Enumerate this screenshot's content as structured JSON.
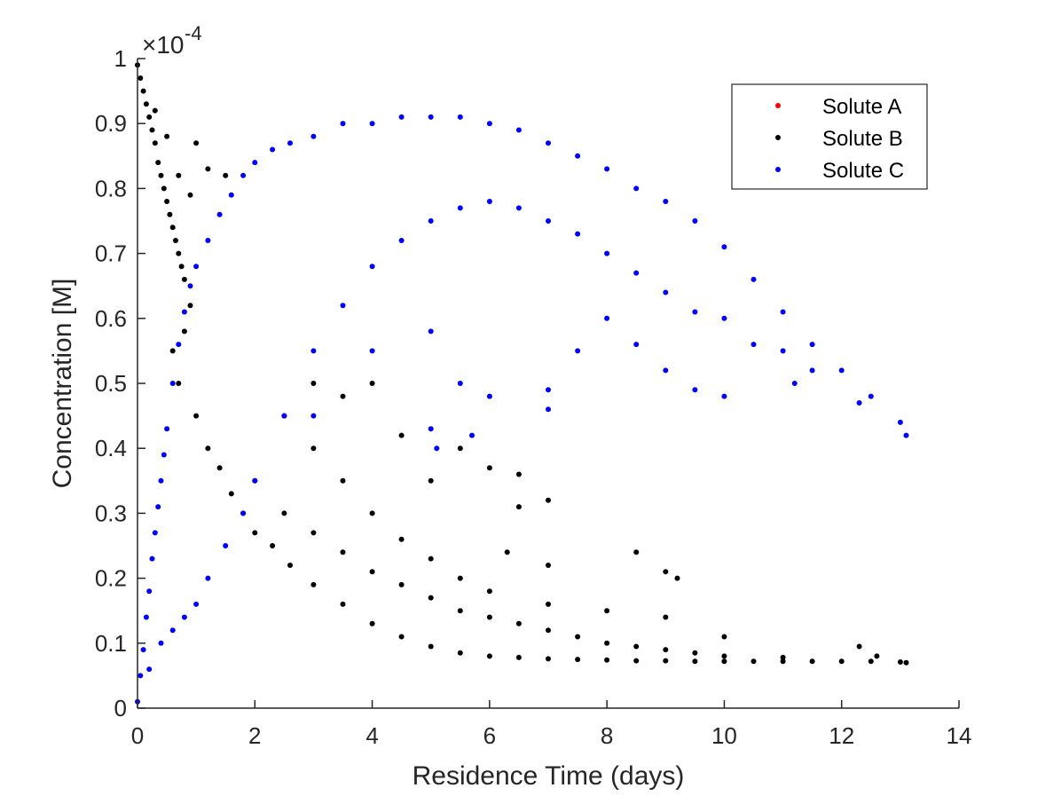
{
  "chart_data": {
    "type": "scatter",
    "xlabel": "Residence Time (days)",
    "ylabel": "Concentration [M]",
    "xlim": [
      0,
      14
    ],
    "ylim": [
      0,
      0.0001
    ],
    "x_ticks": [
      "0",
      "2",
      "4",
      "6",
      "8",
      "10",
      "12",
      "14"
    ],
    "y_ticks": [
      "0",
      "0.1",
      "0.2",
      "0.3",
      "0.4",
      "0.5",
      "0.6",
      "0.7",
      "0.8",
      "0.9",
      "1"
    ],
    "y_exponent": {
      "base": "×10",
      "power": "-4"
    },
    "grid": false,
    "legend_position": "top-right",
    "series": [
      {
        "name": "Solute A",
        "color": "#ff0000",
        "points": []
      },
      {
        "name": "Solute B",
        "color": "#000000",
        "points": [
          [
            0.0,
            9.9e-05
          ],
          [
            0.05,
            9.7e-05
          ],
          [
            0.1,
            9.5e-05
          ],
          [
            0.15,
            9.3e-05
          ],
          [
            0.2,
            9.1e-05
          ],
          [
            0.25,
            8.9e-05
          ],
          [
            0.3,
            8.7e-05
          ],
          [
            0.35,
            8.4e-05
          ],
          [
            0.4,
            8.2e-05
          ],
          [
            0.45,
            8e-05
          ],
          [
            0.5,
            7.8e-05
          ],
          [
            0.55,
            7.6e-05
          ],
          [
            0.6,
            7.4e-05
          ],
          [
            0.65,
            7.2e-05
          ],
          [
            0.7,
            7e-05
          ],
          [
            0.75,
            6.8e-05
          ],
          [
            0.8,
            6.6e-05
          ],
          [
            0.9,
            6.2e-05
          ],
          [
            0.3,
            9.2e-05
          ],
          [
            0.5,
            8.8e-05
          ],
          [
            0.7,
            8.2e-05
          ],
          [
            0.9,
            7.9e-05
          ],
          [
            1.0,
            8.7e-05
          ],
          [
            1.2,
            8.3e-05
          ],
          [
            1.5,
            8.2e-05
          ],
          [
            0.6,
            5.5e-05
          ],
          [
            0.7,
            5e-05
          ],
          [
            0.8,
            5.8e-05
          ],
          [
            1.0,
            4.5e-05
          ],
          [
            1.2,
            4e-05
          ],
          [
            1.4,
            3.7e-05
          ],
          [
            1.6,
            3.3e-05
          ],
          [
            1.8,
            3e-05
          ],
          [
            2.0,
            2.7e-05
          ],
          [
            2.3,
            2.5e-05
          ],
          [
            2.6,
            2.2e-05
          ],
          [
            3.0,
            1.9e-05
          ],
          [
            3.5,
            1.6e-05
          ],
          [
            4.0,
            1.3e-05
          ],
          [
            4.5,
            1.1e-05
          ],
          [
            5.0,
            9.5e-06
          ],
          [
            5.5,
            8.5e-06
          ],
          [
            6.0,
            8e-06
          ],
          [
            6.5,
            7.8e-06
          ],
          [
            7.0,
            7.6e-06
          ],
          [
            7.5,
            7.5e-06
          ],
          [
            8.0,
            7.4e-06
          ],
          [
            8.5,
            7.3e-06
          ],
          [
            9.0,
            7.3e-06
          ],
          [
            9.5,
            7.2e-06
          ],
          [
            10.0,
            7.2e-06
          ],
          [
            10.5,
            7.2e-06
          ],
          [
            11.0,
            7.2e-06
          ],
          [
            11.5,
            7.2e-06
          ],
          [
            12.0,
            7.2e-06
          ],
          [
            12.5,
            7.2e-06
          ],
          [
            13.0,
            7.1e-06
          ],
          [
            2.0,
            3.5e-05
          ],
          [
            2.5,
            3e-05
          ],
          [
            3.0,
            2.7e-05
          ],
          [
            3.5,
            2.4e-05
          ],
          [
            4.0,
            2.1e-05
          ],
          [
            4.5,
            1.9e-05
          ],
          [
            5.0,
            1.7e-05
          ],
          [
            5.5,
            1.5e-05
          ],
          [
            6.0,
            1.4e-05
          ],
          [
            6.5,
            1.3e-05
          ],
          [
            7.0,
            1.2e-05
          ],
          [
            7.5,
            1.1e-05
          ],
          [
            8.0,
            1e-05
          ],
          [
            8.5,
            9.5e-06
          ],
          [
            9.0,
            9e-06
          ],
          [
            9.5,
            8.5e-06
          ],
          [
            10.0,
            8e-06
          ],
          [
            11.0,
            7.8e-06
          ],
          [
            2.5,
            4.5e-05
          ],
          [
            3.0,
            4e-05
          ],
          [
            3.5,
            3.5e-05
          ],
          [
            4.0,
            3e-05
          ],
          [
            4.5,
            2.6e-05
          ],
          [
            5.0,
            2.3e-05
          ],
          [
            5.5,
            2e-05
          ],
          [
            6.0,
            1.8e-05
          ],
          [
            7.0,
            1.6e-05
          ],
          [
            8.0,
            1.5e-05
          ],
          [
            9.0,
            1.4e-05
          ],
          [
            10.0,
            1.1e-05
          ],
          [
            3.0,
            5e-05
          ],
          [
            3.5,
            4.8e-05
          ],
          [
            4.0,
            5e-05
          ],
          [
            4.5,
            4.2e-05
          ],
          [
            5.0,
            3.5e-05
          ],
          [
            5.5,
            4e-05
          ],
          [
            6.0,
            3.7e-05
          ],
          [
            6.5,
            3.6e-05
          ],
          [
            7.0,
            3.2e-05
          ],
          [
            6.5,
            3.1e-05
          ],
          [
            6.3,
            2.4e-05
          ],
          [
            7.0,
            2.2e-05
          ],
          [
            8.5,
            2.4e-05
          ],
          [
            9.0,
            2.1e-05
          ],
          [
            9.2,
            2e-05
          ],
          [
            12.3,
            9.5e-06
          ],
          [
            12.6,
            8e-06
          ],
          [
            13.1,
            7e-06
          ]
        ]
      },
      {
        "name": "Solute C",
        "color": "#0000ff",
        "points": [
          [
            0.0,
            1e-06
          ],
          [
            0.05,
            5e-06
          ],
          [
            0.1,
            9e-06
          ],
          [
            0.15,
            1.4e-05
          ],
          [
            0.2,
            1.8e-05
          ],
          [
            0.25,
            2.3e-05
          ],
          [
            0.3,
            2.7e-05
          ],
          [
            0.35,
            3.1e-05
          ],
          [
            0.4,
            3.5e-05
          ],
          [
            0.45,
            3.9e-05
          ],
          [
            0.5,
            4.3e-05
          ],
          [
            0.6,
            5e-05
          ],
          [
            0.7,
            5.6e-05
          ],
          [
            0.8,
            6.1e-05
          ],
          [
            0.9,
            6.5e-05
          ],
          [
            1.0,
            6.8e-05
          ],
          [
            1.2,
            7.2e-05
          ],
          [
            1.4,
            7.6e-05
          ],
          [
            1.6,
            7.9e-05
          ],
          [
            1.8,
            8.2e-05
          ],
          [
            2.0,
            8.4e-05
          ],
          [
            2.3,
            8.6e-05
          ],
          [
            2.6,
            8.7e-05
          ],
          [
            3.0,
            8.8e-05
          ],
          [
            3.5,
            9e-05
          ],
          [
            4.0,
            9e-05
          ],
          [
            4.5,
            9.1e-05
          ],
          [
            5.0,
            9.1e-05
          ],
          [
            5.5,
            9.1e-05
          ],
          [
            6.0,
            9e-05
          ],
          [
            6.5,
            8.9e-05
          ],
          [
            7.0,
            8.7e-05
          ],
          [
            7.5,
            8.5e-05
          ],
          [
            8.0,
            8.3e-05
          ],
          [
            8.5,
            8e-05
          ],
          [
            9.0,
            7.8e-05
          ],
          [
            9.5,
            7.5e-05
          ],
          [
            10.0,
            7.1e-05
          ],
          [
            10.5,
            6.6e-05
          ],
          [
            11.0,
            6.1e-05
          ],
          [
            11.5,
            5.6e-05
          ],
          [
            12.0,
            5.2e-05
          ],
          [
            12.5,
            4.8e-05
          ],
          [
            13.0,
            4.4e-05
          ],
          [
            13.1,
            4.2e-05
          ],
          [
            0.2,
            6e-06
          ],
          [
            0.4,
            1e-05
          ],
          [
            0.6,
            1.2e-05
          ],
          [
            0.8,
            1.4e-05
          ],
          [
            1.0,
            1.6e-05
          ],
          [
            1.2,
            2e-05
          ],
          [
            1.5,
            2.5e-05
          ],
          [
            1.8,
            3e-05
          ],
          [
            2.0,
            3.5e-05
          ],
          [
            2.5,
            4.5e-05
          ],
          [
            3.0,
            5.5e-05
          ],
          [
            3.5,
            6.2e-05
          ],
          [
            4.0,
            6.8e-05
          ],
          [
            4.5,
            7.2e-05
          ],
          [
            5.0,
            7.5e-05
          ],
          [
            5.5,
            7.7e-05
          ],
          [
            6.0,
            7.8e-05
          ],
          [
            6.5,
            7.7e-05
          ],
          [
            7.0,
            7.5e-05
          ],
          [
            7.5,
            7.3e-05
          ],
          [
            8.0,
            7e-05
          ],
          [
            8.5,
            6.7e-05
          ],
          [
            9.0,
            6.4e-05
          ],
          [
            9.5,
            6.1e-05
          ],
          [
            10.0,
            6e-05
          ],
          [
            10.5,
            5.6e-05
          ],
          [
            11.0,
            5.5e-05
          ],
          [
            11.5,
            5.2e-05
          ],
          [
            12.3,
            4.7e-05
          ],
          [
            3.0,
            4.5e-05
          ],
          [
            4.0,
            5.5e-05
          ],
          [
            5.0,
            5.8e-05
          ],
          [
            5.5,
            5e-05
          ],
          [
            6.0,
            4.8e-05
          ],
          [
            7.0,
            4.6e-05
          ],
          [
            7.5,
            5.5e-05
          ],
          [
            8.0,
            6e-05
          ],
          [
            8.5,
            5.6e-05
          ],
          [
            9.0,
            5.2e-05
          ],
          [
            9.5,
            4.9e-05
          ],
          [
            10.0,
            4.8e-05
          ],
          [
            5.0,
            4.3e-05
          ],
          [
            5.7,
            4.2e-05
          ],
          [
            5.1,
            4e-05
          ],
          [
            7.0,
            4.9e-05
          ],
          [
            11.2,
            5e-05
          ]
        ]
      }
    ]
  }
}
